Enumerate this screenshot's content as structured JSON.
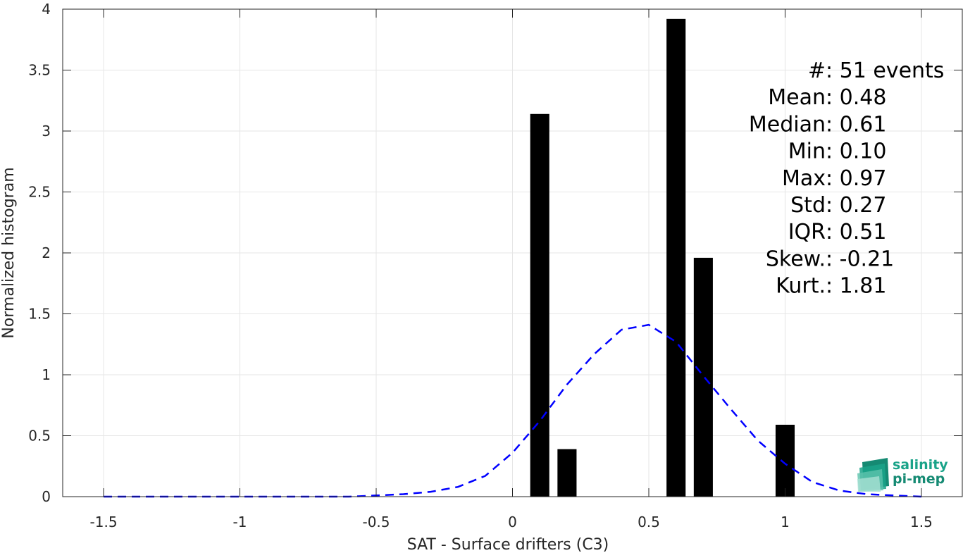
{
  "chart_data": {
    "type": "bar",
    "xlabel": "SAT - Surface drifters (C3)",
    "ylabel": "Normalized histogram",
    "xlim": [
      -1.65,
      1.65
    ],
    "ylim": [
      0,
      4
    ],
    "xticks": [
      -1.5,
      -1,
      -0.5,
      0,
      0.5,
      1,
      1.5
    ],
    "xtick_labels": [
      "-1.5",
      "-1",
      "-0.5",
      "0",
      "0.5",
      "1",
      "1.5"
    ],
    "yticks": [
      0,
      0.5,
      1,
      1.5,
      2,
      2.5,
      3,
      3.5,
      4
    ],
    "ytick_labels": [
      "0",
      "0.5",
      "1",
      "1.5",
      "2",
      "2.5",
      "3",
      "3.5",
      "4"
    ],
    "grid": true,
    "bar_width": 0.07,
    "bars": [
      {
        "x": 0.1,
        "value": 3.14
      },
      {
        "x": 0.2,
        "value": 0.39
      },
      {
        "x": 0.6,
        "value": 3.92
      },
      {
        "x": 0.7,
        "value": 1.96
      },
      {
        "x": 1.0,
        "value": 0.59
      }
    ],
    "fit_curve": {
      "style": "dashed",
      "color": "#0000ff",
      "x": [
        -1.5,
        -1.4,
        -1.3,
        -1.2,
        -1.1,
        -1.0,
        -0.9,
        -0.8,
        -0.7,
        -0.6,
        -0.5,
        -0.4,
        -0.3,
        -0.2,
        -0.1,
        0.0,
        0.1,
        0.2,
        0.3,
        0.4,
        0.5,
        0.6,
        0.7,
        0.8,
        0.9,
        1.0,
        1.1,
        1.2,
        1.3,
        1.4,
        1.5
      ],
      "y": [
        0.0,
        0.0,
        0.0,
        0.0,
        0.0,
        0.0,
        0.0,
        0.0,
        0.0,
        0.0,
        0.01,
        0.02,
        0.04,
        0.08,
        0.17,
        0.36,
        0.62,
        0.92,
        1.17,
        1.37,
        1.41,
        1.27,
        0.99,
        0.72,
        0.46,
        0.27,
        0.12,
        0.05,
        0.02,
        0.01,
        0.0
      ]
    },
    "bar_color": "#000000",
    "stats": [
      {
        "label": "#  ",
        "value": ": 51 events"
      },
      {
        "label": "Mean ",
        "value": ": 0.48"
      },
      {
        "label": "Median ",
        "value": ": 0.61"
      },
      {
        "label": "Min ",
        "value": ": 0.10"
      },
      {
        "label": "Max ",
        "value": ": 0.97"
      },
      {
        "label": "Std ",
        "value": ": 0.27"
      },
      {
        "label": "IQR ",
        "value": ": 0.51"
      },
      {
        "label": "Skew. ",
        "value": ": -0.21"
      },
      {
        "label": "Kurt. ",
        "value": ": 1.81"
      }
    ]
  },
  "logo": {
    "line1": "salinity",
    "line2": "pi-mep",
    "color": "#1aa389"
  }
}
